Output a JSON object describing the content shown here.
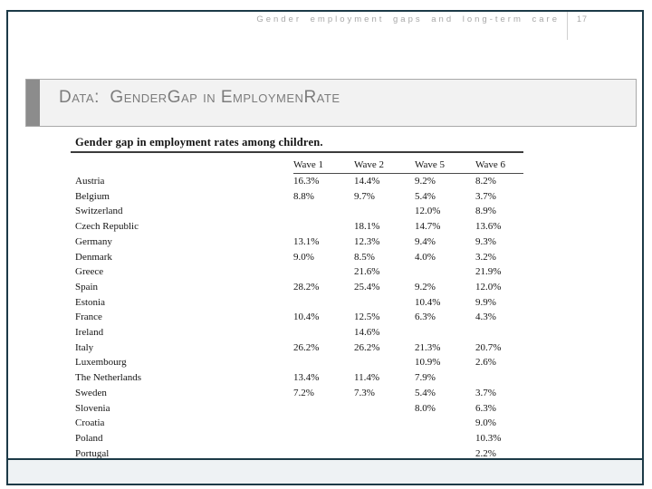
{
  "header": {
    "title": "Gender employment gaps and long-term care",
    "page_number": "17"
  },
  "title": {
    "text": "Data:  GenderGap in EmploymenRate"
  },
  "table": {
    "title": "Gender gap in employment rates among children.",
    "columns": [
      "Wave 1",
      "Wave 2",
      "Wave 5",
      "Wave 6"
    ],
    "rows": [
      {
        "country": "Austria",
        "values": [
          "16.3%",
          "14.4%",
          "9.2%",
          "8.2%"
        ]
      },
      {
        "country": "Belgium",
        "values": [
          "8.8%",
          "9.7%",
          "5.4%",
          "3.7%"
        ]
      },
      {
        "country": "Switzerland",
        "values": [
          "",
          "",
          "12.0%",
          "8.9%"
        ]
      },
      {
        "country": "Czech Republic",
        "values": [
          "",
          "18.1%",
          "14.7%",
          "13.6%"
        ]
      },
      {
        "country": "Germany",
        "values": [
          "13.1%",
          "12.3%",
          "9.4%",
          "9.3%"
        ]
      },
      {
        "country": "Denmark",
        "values": [
          "9.0%",
          "8.5%",
          "4.0%",
          "3.2%"
        ]
      },
      {
        "country": "Greece",
        "values": [
          "",
          "21.6%",
          "",
          "21.9%"
        ]
      },
      {
        "country": "Spain",
        "values": [
          "28.2%",
          "25.4%",
          "9.2%",
          "12.0%"
        ]
      },
      {
        "country": "Estonia",
        "values": [
          "",
          "",
          "10.4%",
          "9.9%"
        ]
      },
      {
        "country": "France",
        "values": [
          "10.4%",
          "12.5%",
          "6.3%",
          "4.3%"
        ]
      },
      {
        "country": "Ireland",
        "values": [
          "",
          "14.6%",
          "",
          ""
        ]
      },
      {
        "country": "Italy",
        "values": [
          "26.2%",
          "26.2%",
          "21.3%",
          "20.7%"
        ]
      },
      {
        "country": "Luxembourg",
        "values": [
          "",
          "",
          "10.9%",
          "2.6%"
        ]
      },
      {
        "country": "The Netherlands",
        "values": [
          "13.4%",
          "11.4%",
          "7.9%",
          ""
        ]
      },
      {
        "country": "Sweden",
        "values": [
          "7.2%",
          "7.3%",
          "5.4%",
          "3.7%"
        ]
      },
      {
        "country": "Slovenia",
        "values": [
          "",
          "",
          "8.0%",
          "6.3%"
        ]
      },
      {
        "country": "Croatia",
        "values": [
          "",
          "",
          "",
          "9.0%"
        ]
      },
      {
        "country": "Poland",
        "values": [
          "",
          "",
          "",
          "10.3%"
        ]
      },
      {
        "country": "Portugal",
        "values": [
          "",
          "",
          "",
          "2.2%"
        ]
      }
    ]
  },
  "colors": {
    "frame_border": "#1c3a47",
    "header_text": "#a8a8a8",
    "title_text": "#7c7c7c",
    "title_box_bg": "#f2f2f2",
    "title_accent_bar": "#8c8c8c",
    "table_text": "#141414",
    "footer_bg": "#eef2f4"
  }
}
